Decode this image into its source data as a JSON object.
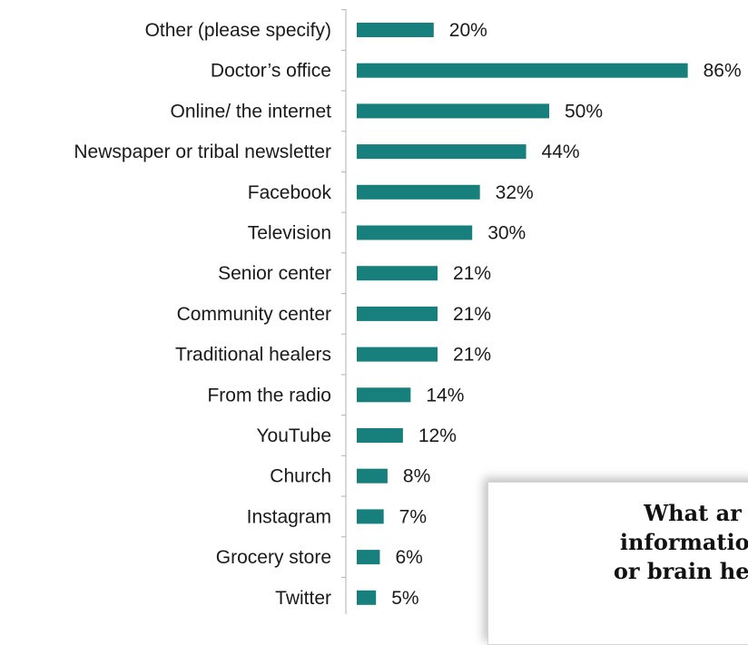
{
  "chart_data": {
    "type": "bar",
    "orientation": "horizontal",
    "title": "",
    "xlabel": "",
    "ylabel": "",
    "categories": [
      "Other (please specify)",
      "Doctor’s office",
      "Online/ the internet",
      "Newspaper or tribal newsletter",
      "Facebook",
      "Television",
      "Senior center",
      "Community center",
      "Traditional healers",
      "From the radio",
      "YouTube",
      "Church",
      "Instagram",
      "Grocery store",
      "Twitter"
    ],
    "values": [
      20,
      86,
      50,
      44,
      32,
      30,
      21,
      21,
      21,
      14,
      12,
      8,
      7,
      6,
      5
    ],
    "value_labels": [
      "20%",
      "86%",
      "50%",
      "44%",
      "32%",
      "30%",
      "21%",
      "21%",
      "21%",
      "14%",
      "12%",
      "8%",
      "7%",
      "6%",
      "5%"
    ],
    "xlim": [
      0,
      86
    ],
    "grid": false,
    "bar_color": "#17807c"
  },
  "callout": {
    "lines": [
      "What ar",
      "information",
      "or brain heal"
    ]
  }
}
